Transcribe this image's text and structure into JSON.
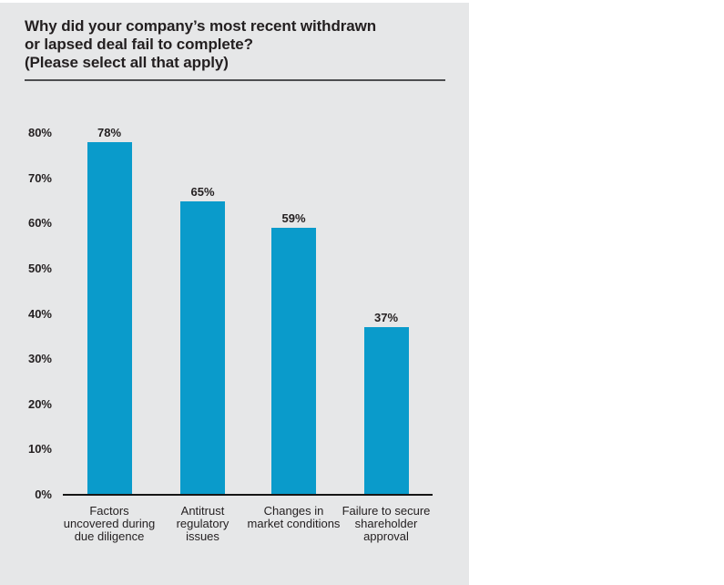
{
  "page": {
    "background": "#ffffff",
    "panel_background": "#e6e7e8"
  },
  "title": {
    "lines": [
      "Why did your company’s most recent withdrawn",
      "or lapsed deal fail to complete?",
      "(Please select all that apply)"
    ]
  },
  "chart_data": {
    "type": "bar",
    "title": "Why did your company’s most recent withdrawn or lapsed deal fail to complete? (Please select all that apply)",
    "categories": [
      "Factors uncovered during due diligence",
      "Antitrust regulatory issues",
      "Changes in market conditions",
      "Failure to secure shareholder approval"
    ],
    "category_label_lines": [
      [
        "Factors",
        "uncovered during",
        "due diligence"
      ],
      [
        "Antitrust",
        "regulatory",
        "issues"
      ],
      [
        "Changes in",
        "market conditions"
      ],
      [
        "Failure to secure",
        "shareholder",
        "approval"
      ]
    ],
    "values": [
      78,
      65,
      59,
      37
    ],
    "value_labels": [
      "78%",
      "65%",
      "59%",
      "37%"
    ],
    "xlabel": "",
    "ylabel": "",
    "y_ticks": [
      "0%",
      "10%",
      "20%",
      "30%",
      "40%",
      "50%",
      "60%",
      "70%",
      "80%"
    ],
    "y_tick_values": [
      0,
      10,
      20,
      30,
      40,
      50,
      60,
      70,
      80
    ],
    "ylim": [
      0,
      80
    ],
    "grid": false,
    "legend": "none",
    "bar_color": "#0a9bcb",
    "axis_color": "#161616",
    "text_color": "#231f20"
  }
}
